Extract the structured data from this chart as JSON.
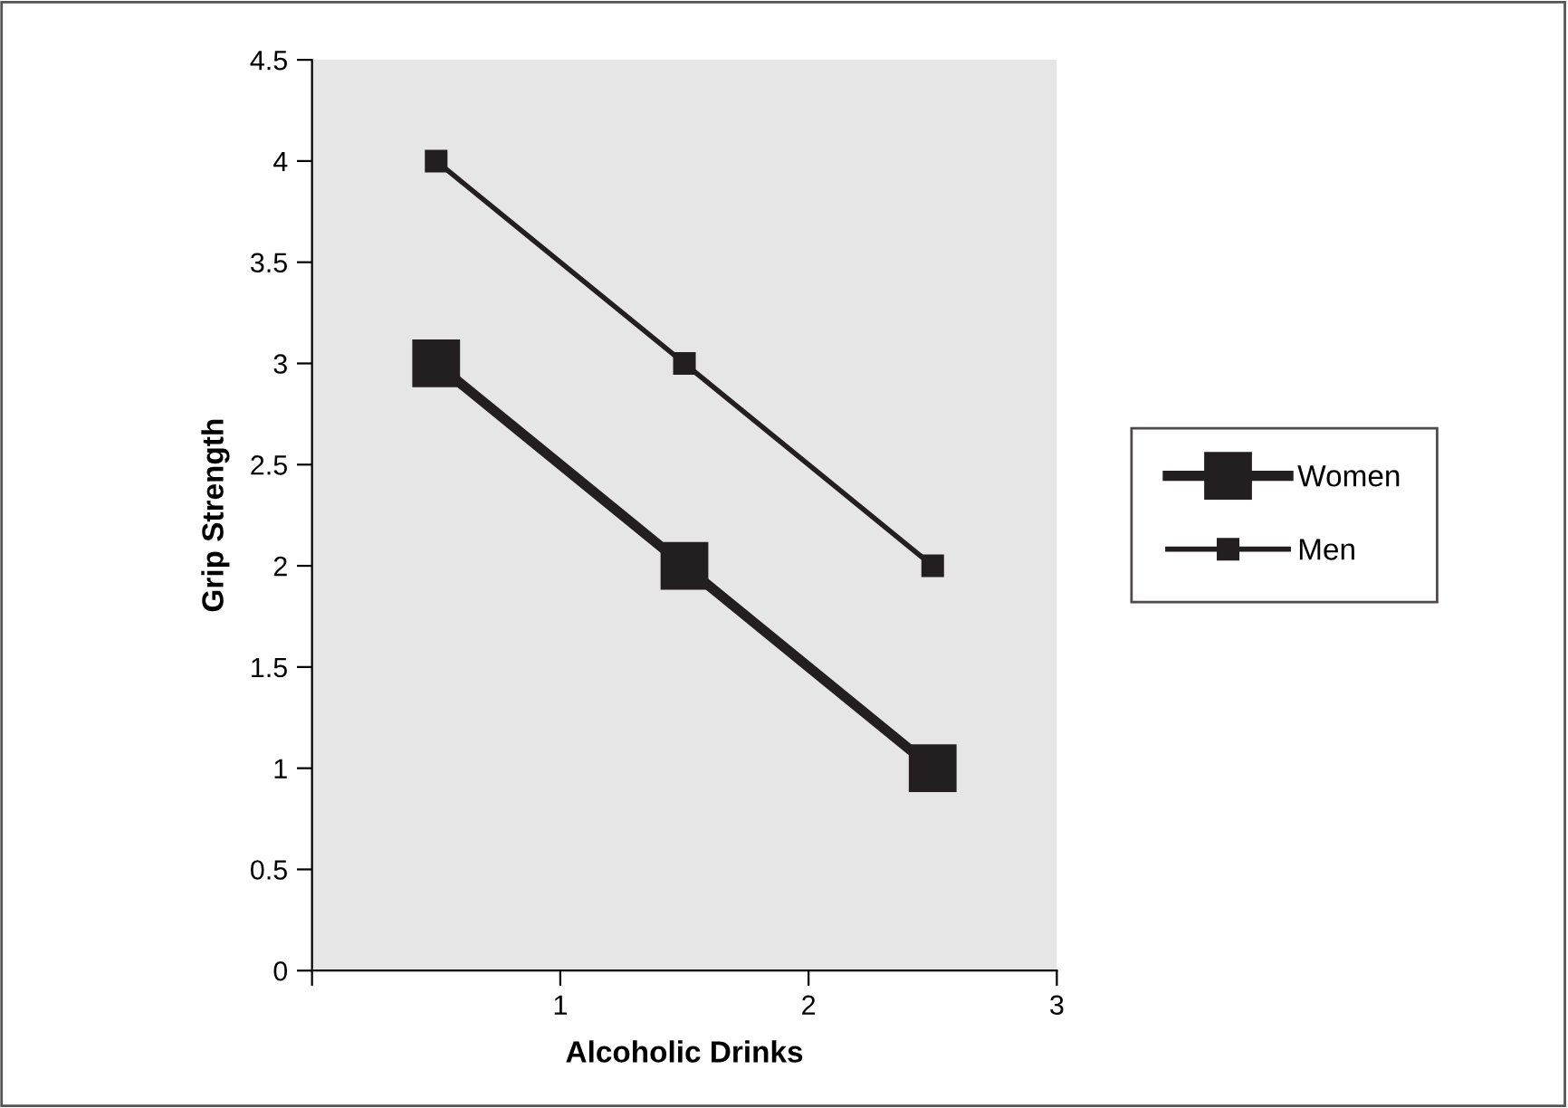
{
  "chart_data": {
    "type": "line",
    "xlabel": "Alcoholic Drinks",
    "ylabel": "Grip Strength",
    "x": [
      0.5,
      1.5,
      2.5
    ],
    "series": [
      {
        "name": "Women",
        "color": "#231f20",
        "values": [
          3,
          2,
          1
        ]
      },
      {
        "name": "Men",
        "color": "#231f20",
        "values": [
          4,
          3,
          2
        ]
      }
    ],
    "xlim": [
      0,
      3
    ],
    "xticks": [
      {
        "value": 0,
        "label": null
      },
      1,
      2,
      3
    ],
    "ylim": [
      0,
      4.5
    ],
    "yticks": [
      0,
      0.5,
      1,
      1.5,
      2,
      2.5,
      3,
      3.5,
      4,
      4.5
    ],
    "marker": "square",
    "line_style": "solid",
    "grid": false,
    "legend": "right"
  }
}
